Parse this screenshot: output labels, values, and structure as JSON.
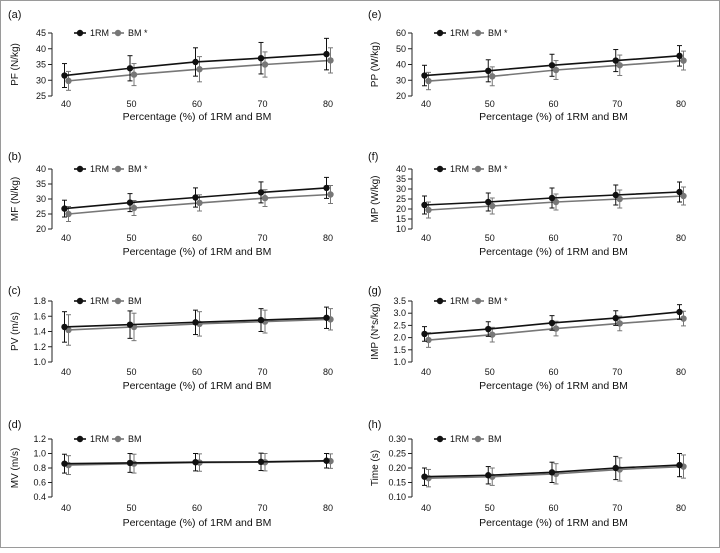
{
  "figure": {
    "series_colors": {
      "1RM": "#111111",
      "BM": "#777777"
    },
    "series_names": [
      "1RM",
      "BM"
    ]
  },
  "chart_data": [
    {
      "panel": "(a)",
      "type": "line",
      "ylabel": "PF (N/kg)",
      "xlabel": "Percentage (%) of 1RM and BM",
      "legend": [
        "1RM",
        "BM *"
      ],
      "legend_placement": "top-left",
      "x": [
        40,
        50,
        60,
        70,
        80
      ],
      "ylim": [
        25,
        45
      ],
      "yticks": [
        25,
        30,
        35,
        40,
        45
      ],
      "ytick_labels": [
        "25",
        "30",
        "35",
        "40",
        "45"
      ],
      "series": [
        {
          "name": "1RM",
          "values": [
            31.5,
            33.8,
            35.8,
            37.0,
            38.3
          ],
          "err": [
            3.8,
            4.0,
            4.5,
            5.0,
            5.0
          ]
        },
        {
          "name": "BM",
          "values": [
            29.8,
            31.8,
            33.5,
            35.0,
            36.3
          ],
          "err": [
            3.0,
            3.5,
            4.0,
            4.0,
            4.0
          ]
        }
      ]
    },
    {
      "panel": "(e)",
      "type": "line",
      "ylabel": "PP (W/kg)",
      "xlabel": "Percentage (%) of 1RM and BM",
      "legend": [
        "1RM",
        "BM *"
      ],
      "legend_placement": "top-left",
      "x": [
        40,
        50,
        60,
        70,
        80
      ],
      "ylim": [
        20,
        60
      ],
      "yticks": [
        20,
        30,
        40,
        50,
        60
      ],
      "ytick_labels": [
        "20",
        "30",
        "40",
        "50",
        "60"
      ],
      "series": [
        {
          "name": "1RM",
          "values": [
            33.0,
            36.0,
            39.5,
            42.5,
            45.5
          ],
          "err": [
            6.5,
            7.0,
            7.0,
            7.0,
            6.5
          ]
        },
        {
          "name": "BM",
          "values": [
            29.5,
            32.5,
            36.5,
            39.5,
            42.5
          ],
          "err": [
            5.5,
            6.0,
            6.0,
            6.5,
            6.0
          ]
        }
      ]
    },
    {
      "panel": "(b)",
      "type": "line",
      "ylabel": "MF (N/kg)",
      "xlabel": "Percentage (%) of 1RM and BM",
      "legend": [
        "1RM",
        "BM *"
      ],
      "legend_placement": "top-left",
      "x": [
        40,
        50,
        60,
        70,
        80
      ],
      "ylim": [
        20,
        40
      ],
      "yticks": [
        20,
        25,
        30,
        35,
        40
      ],
      "ytick_labels": [
        "20",
        "25",
        "30",
        "35",
        "40"
      ],
      "series": [
        {
          "name": "1RM",
          "values": [
            26.8,
            28.8,
            30.5,
            32.2,
            33.7
          ],
          "err": [
            2.8,
            3.0,
            3.2,
            3.5,
            3.5
          ]
        },
        {
          "name": "BM",
          "values": [
            25.0,
            27.0,
            28.7,
            30.3,
            31.5
          ],
          "err": [
            2.5,
            2.5,
            2.7,
            2.8,
            3.0
          ]
        }
      ]
    },
    {
      "panel": "(f)",
      "type": "line",
      "ylabel": "MP (W/kg)",
      "xlabel": "Percentage (%) of 1RM and BM",
      "legend": [
        "1RM",
        "BM *"
      ],
      "legend_placement": "top-left",
      "x": [
        40,
        50,
        60,
        70,
        80
      ],
      "ylim": [
        10,
        40
      ],
      "yticks": [
        10,
        15,
        20,
        25,
        30,
        35,
        40
      ],
      "ytick_labels": [
        "10",
        "15",
        "20",
        "25",
        "30",
        "35",
        "40"
      ],
      "series": [
        {
          "name": "1RM",
          "values": [
            22.0,
            23.5,
            25.5,
            27.0,
            28.5
          ],
          "err": [
            4.5,
            4.5,
            5.0,
            5.0,
            5.0
          ]
        },
        {
          "name": "BM",
          "values": [
            19.5,
            21.5,
            23.5,
            25.0,
            26.5
          ],
          "err": [
            4.0,
            4.0,
            4.0,
            4.5,
            4.5
          ]
        }
      ]
    },
    {
      "panel": "(c)",
      "type": "line",
      "ylabel": "PV (m/s)",
      "xlabel": "Percentage (%) of 1RM and BM",
      "legend": [
        "1RM",
        "BM"
      ],
      "legend_placement": "top-left",
      "x": [
        40,
        50,
        60,
        70,
        80
      ],
      "ylim": [
        1.0,
        1.8
      ],
      "yticks": [
        1.0,
        1.2,
        1.4,
        1.6,
        1.8
      ],
      "ytick_labels": [
        "1.0",
        "1.2",
        "1.4",
        "1.6",
        "1.8"
      ],
      "series": [
        {
          "name": "1RM",
          "values": [
            1.46,
            1.49,
            1.52,
            1.55,
            1.58
          ],
          "err": [
            0.2,
            0.18,
            0.16,
            0.15,
            0.14
          ]
        },
        {
          "name": "BM",
          "values": [
            1.42,
            1.46,
            1.5,
            1.53,
            1.56
          ],
          "err": [
            0.2,
            0.18,
            0.16,
            0.15,
            0.14
          ]
        }
      ]
    },
    {
      "panel": "(g)",
      "type": "line",
      "ylabel": "IMP (N*s/kg)",
      "xlabel": "Percentage (%) of 1RM and BM",
      "legend": [
        "1RM",
        "BM *"
      ],
      "legend_placement": "top-left",
      "x": [
        40,
        50,
        60,
        70,
        80
      ],
      "ylim": [
        1.0,
        3.5
      ],
      "yticks": [
        1.0,
        1.5,
        2.0,
        2.5,
        3.0,
        3.5
      ],
      "ytick_labels": [
        "1.0",
        "1.5",
        "2.0",
        "2.5",
        "3.0",
        "3.5"
      ],
      "series": [
        {
          "name": "1RM",
          "values": [
            2.15,
            2.35,
            2.6,
            2.8,
            3.05
          ],
          "err": [
            0.3,
            0.3,
            0.3,
            0.3,
            0.3
          ]
        },
        {
          "name": "BM",
          "values": [
            1.9,
            2.12,
            2.37,
            2.58,
            2.78
          ],
          "err": [
            0.3,
            0.3,
            0.3,
            0.3,
            0.3
          ]
        }
      ]
    },
    {
      "panel": "(d)",
      "type": "line",
      "ylabel": "MV (m/s)",
      "xlabel": "Percentage (%) of 1RM and BM",
      "legend": [
        "1RM",
        "BM"
      ],
      "legend_placement": "top-left",
      "x": [
        40,
        50,
        60,
        70,
        80
      ],
      "ylim": [
        0.4,
        1.2
      ],
      "yticks": [
        0.4,
        0.6,
        0.8,
        1.0,
        1.2
      ],
      "ytick_labels": [
        "0.4",
        "0.6",
        "0.8",
        "1.0",
        "1.2"
      ],
      "series": [
        {
          "name": "1RM",
          "values": [
            0.86,
            0.87,
            0.88,
            0.885,
            0.9
          ],
          "err": [
            0.13,
            0.13,
            0.12,
            0.12,
            0.1
          ]
        },
        {
          "name": "BM",
          "values": [
            0.84,
            0.86,
            0.875,
            0.88,
            0.895
          ],
          "err": [
            0.13,
            0.13,
            0.12,
            0.12,
            0.1
          ]
        }
      ]
    },
    {
      "panel": "(h)",
      "type": "line",
      "ylabel": "Time (s)",
      "xlabel": "Percentage (%) of 1RM and BM",
      "legend": [
        "1RM",
        "BM"
      ],
      "legend_placement": "top-left",
      "x": [
        40,
        50,
        60,
        70,
        80
      ],
      "ylim": [
        0.1,
        0.3
      ],
      "yticks": [
        0.1,
        0.15,
        0.2,
        0.25,
        0.3
      ],
      "ytick_labels": [
        "0.10",
        "0.15",
        "0.20",
        "0.25",
        "0.30"
      ],
      "series": [
        {
          "name": "1RM",
          "values": [
            0.17,
            0.175,
            0.185,
            0.2,
            0.21
          ],
          "err": [
            0.03,
            0.03,
            0.035,
            0.04,
            0.04
          ]
        },
        {
          "name": "BM",
          "values": [
            0.165,
            0.17,
            0.18,
            0.195,
            0.205
          ],
          "err": [
            0.03,
            0.03,
            0.035,
            0.04,
            0.04
          ]
        }
      ]
    }
  ]
}
